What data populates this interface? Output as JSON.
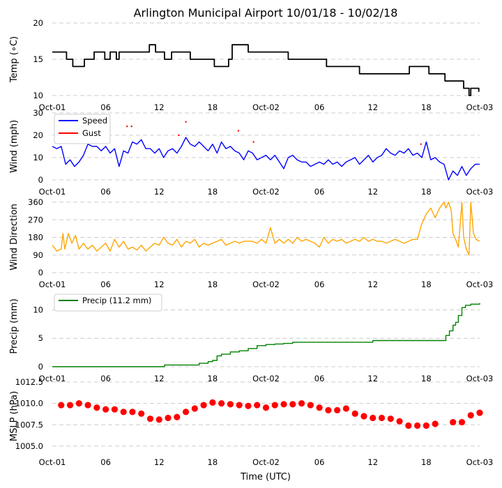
{
  "title": "Arlington Municipal Airport 10/01/18 - 10/02/18",
  "xlabel": "Time (UTC)",
  "x_ticks": [
    "Oct-01",
    "06",
    "12",
    "18",
    "Oct-02",
    "06",
    "12",
    "18",
    "Oct-03"
  ],
  "x_tick_hours": [
    0,
    6,
    12,
    18,
    24,
    30,
    36,
    42,
    48
  ],
  "colors": {
    "temp": "#000000",
    "speed": "#0000ff",
    "gust": "#ff0000",
    "direction": "#ffa500",
    "precip": "#008000",
    "pressure": "#ff0000",
    "grid": "#cccccc"
  },
  "chart_data": [
    {
      "type": "line",
      "id": "temp",
      "ylabel": "Temp (∘C)",
      "ylim": [
        10,
        20
      ],
      "y_ticks": [
        "10",
        "15",
        "20"
      ],
      "y_tick_values": [
        10,
        15,
        20
      ],
      "series": [
        {
          "name": "Temp",
          "x": [
            0,
            1.5,
            1.6,
            1.9,
            2.3,
            2.6,
            3.5,
            3.6,
            4.6,
            4.7,
            5.8,
            5.9,
            6.2,
            6.5,
            6.8,
            7.2,
            7.5,
            8.4,
            8.5,
            9.5,
            10.8,
            10.9,
            11.3,
            11.6,
            12.1,
            12.6,
            13.4,
            13.8,
            14.3,
            14.6,
            15.2,
            15.5,
            16.3,
            17.0,
            18.2,
            18.8,
            19.3,
            19.8,
            20.2,
            21.3,
            21.6,
            22.0,
            24.0,
            26.2,
            26.5,
            28.9,
            29.2,
            30.8,
            32.5,
            34.2,
            34.5,
            35.8,
            36.1,
            39.7,
            40.1,
            42.0,
            42.3,
            43.8,
            44.1,
            44.6,
            46.0,
            46.2,
            46.8,
            47.0,
            47.6,
            47.9
          ],
          "y": [
            16,
            16,
            15,
            15,
            14,
            14,
            14,
            15,
            15,
            16,
            16,
            15,
            15,
            16,
            16,
            15,
            16,
            16,
            16,
            16,
            16,
            17,
            17,
            16,
            16,
            15,
            16,
            16,
            16,
            16,
            16,
            15,
            15,
            15,
            14,
            14,
            14,
            15,
            17,
            17,
            17,
            16,
            16,
            16,
            15,
            15,
            15,
            14,
            14,
            14,
            13,
            13,
            13,
            13,
            14,
            14,
            13,
            13,
            12,
            12,
            12,
            11,
            10,
            11,
            11,
            10.5
          ]
        }
      ]
    },
    {
      "type": "line",
      "id": "wind",
      "ylabel": "Wind (mph)",
      "ylim": [
        0,
        30
      ],
      "y_ticks": [
        "0",
        "10",
        "20",
        "30"
      ],
      "y_tick_values": [
        0,
        10,
        20,
        30
      ],
      "legend": {
        "position": "top-left",
        "entries": [
          "Speed",
          "Gust"
        ]
      },
      "series": [
        {
          "name": "Speed",
          "x": [
            0,
            0.5,
            1.0,
            1.5,
            2.0,
            2.5,
            3.0,
            3.5,
            4.0,
            4.5,
            5.0,
            5.5,
            6.0,
            6.5,
            7.0,
            7.5,
            8.0,
            8.5,
            9.0,
            9.5,
            10.0,
            10.5,
            11.0,
            11.5,
            12.0,
            12.5,
            13.0,
            13.5,
            14.0,
            14.5,
            15.0,
            15.5,
            16.0,
            16.5,
            17.0,
            17.5,
            18.0,
            18.5,
            19.0,
            19.5,
            20.0,
            20.5,
            21.0,
            21.5,
            22.0,
            22.5,
            23.0,
            23.5,
            24.0,
            24.5,
            25.0,
            25.5,
            26.0,
            26.5,
            27.0,
            27.5,
            28.0,
            28.5,
            29.0,
            29.5,
            30.0,
            30.5,
            31.0,
            31.5,
            32.0,
            32.5,
            33.0,
            33.5,
            34.0,
            34.5,
            35.0,
            35.5,
            36.0,
            36.5,
            37.0,
            37.5,
            38.0,
            38.5,
            39.0,
            39.5,
            40.0,
            40.5,
            41.0,
            41.5,
            42.0,
            42.5,
            43.0,
            43.5,
            44.0,
            44.5,
            45.0,
            45.5,
            46.0,
            46.5,
            47.0,
            47.5,
            48.0
          ],
          "y": [
            15,
            14,
            15,
            7,
            9,
            6,
            8,
            11,
            16,
            15,
            15,
            13,
            15,
            12,
            14,
            6,
            13,
            12,
            17,
            16,
            18,
            14,
            14,
            12,
            14,
            10,
            13,
            14,
            12,
            15,
            19,
            16,
            15,
            17,
            15,
            13,
            16,
            12,
            17,
            14,
            15,
            13,
            12,
            9,
            13,
            12,
            9,
            10,
            11,
            9,
            11,
            8,
            5,
            10,
            11,
            9,
            8,
            8,
            6,
            7,
            8,
            7,
            9,
            7,
            8,
            6,
            8,
            9,
            10,
            7,
            9,
            11,
            8,
            10,
            11,
            14,
            12,
            11,
            13,
            12,
            14,
            11,
            12,
            10,
            17,
            9,
            10,
            8,
            7,
            0,
            4,
            2,
            6,
            2,
            5,
            7,
            7
          ]
        },
        {
          "name": "Gust",
          "x": [
            8.4,
            8.9,
            14.2,
            15.0,
            20.9,
            22.6,
            41.4
          ],
          "y": [
            24,
            24,
            20,
            26,
            22,
            17,
            16
          ]
        }
      ]
    },
    {
      "type": "line",
      "id": "direction",
      "ylabel": "Wind Direction",
      "ylim": [
        0,
        360
      ],
      "y_ticks": [
        "0",
        "90",
        "180",
        "270",
        "360"
      ],
      "y_tick_values": [
        0,
        90,
        180,
        270,
        360
      ],
      "series": [
        {
          "name": "Direction",
          "x": [
            0,
            0.5,
            1.0,
            1.2,
            1.4,
            1.8,
            2.2,
            2.6,
            3.0,
            3.5,
            4.0,
            4.5,
            5.0,
            5.5,
            6.0,
            6.5,
            7.0,
            7.5,
            8.0,
            8.5,
            9.0,
            9.5,
            10.0,
            10.5,
            11.0,
            11.5,
            12.0,
            12.5,
            13.0,
            13.5,
            14.0,
            14.5,
            15.0,
            15.5,
            16.0,
            16.5,
            17.0,
            17.5,
            18.0,
            18.5,
            19.0,
            19.5,
            20.0,
            20.5,
            21.0,
            21.5,
            22.0,
            22.5,
            23.0,
            23.5,
            24.0,
            24.5,
            25.0,
            25.5,
            26.0,
            26.5,
            27.0,
            27.5,
            28.0,
            28.5,
            29.0,
            29.5,
            30.0,
            30.5,
            31.0,
            31.5,
            32.0,
            32.5,
            33.0,
            33.5,
            34.0,
            34.5,
            35.0,
            35.5,
            36.0,
            36.5,
            37.0,
            37.5,
            38.0,
            38.5,
            39.0,
            39.5,
            40.0,
            40.5,
            41.0,
            41.5,
            42.0,
            42.5,
            43.0,
            43.5,
            44.0,
            44.2,
            44.5,
            44.8,
            45.0,
            45.3,
            45.6,
            46.0,
            46.2,
            46.5,
            46.8,
            47.0,
            47.3,
            47.6,
            48.0
          ],
          "y": [
            140,
            110,
            120,
            200,
            120,
            200,
            150,
            190,
            120,
            150,
            120,
            140,
            110,
            130,
            150,
            110,
            170,
            130,
            160,
            120,
            130,
            115,
            140,
            110,
            130,
            150,
            140,
            180,
            150,
            140,
            170,
            130,
            160,
            150,
            170,
            130,
            150,
            140,
            150,
            160,
            170,
            140,
            150,
            160,
            150,
            160,
            160,
            160,
            150,
            170,
            150,
            230,
            150,
            170,
            150,
            170,
            150,
            180,
            160,
            170,
            160,
            150,
            130,
            180,
            150,
            170,
            160,
            170,
            150,
            160,
            170,
            160,
            180,
            160,
            170,
            160,
            160,
            150,
            160,
            170,
            160,
            150,
            160,
            170,
            170,
            250,
            300,
            330,
            280,
            330,
            360,
            330,
            360,
            320,
            200,
            170,
            130,
            360,
            180,
            120,
            90,
            360,
            200,
            170,
            160
          ]
        }
      ]
    },
    {
      "type": "line",
      "id": "precip",
      "ylabel": "Precip (mm)",
      "ylim": [
        0,
        13
      ],
      "y_ticks": [
        "0",
        "5",
        "10"
      ],
      "y_tick_values": [
        0,
        5,
        10
      ],
      "legend": {
        "position": "top-left",
        "entries": [
          "Precip (11.2 mm)"
        ]
      },
      "series": [
        {
          "name": "Precip (11.2 mm)",
          "x": [
            0,
            12.5,
            12.6,
            16.0,
            16.5,
            17.5,
            18.0,
            18.5,
            19.0,
            20.0,
            21.0,
            22.0,
            23.0,
            24.0,
            25.0,
            26.0,
            27.0,
            30.0,
            35.9,
            36.0,
            43.9,
            44.2,
            44.6,
            45.0,
            45.3,
            45.6,
            46.0,
            46.4,
            47.0,
            48.0
          ],
          "y": [
            0,
            0,
            0.3,
            0.3,
            0.6,
            0.9,
            1.1,
            1.9,
            2.2,
            2.6,
            2.8,
            3.2,
            3.7,
            3.9,
            4.0,
            4.1,
            4.3,
            4.3,
            4.3,
            4.6,
            4.6,
            5.5,
            6.3,
            7.3,
            7.8,
            9.0,
            10.4,
            10.8,
            11.0,
            11.2
          ]
        }
      ]
    },
    {
      "type": "scatter",
      "id": "pressure",
      "ylabel": "MSLP (hPa)",
      "ylim": [
        1004.5,
        1012.5
      ],
      "y_ticks": [
        "1005.0",
        "1007.5",
        "1010.0",
        "1012.5"
      ],
      "y_tick_values": [
        1005.0,
        1007.5,
        1010.0,
        1012.5
      ],
      "series": [
        {
          "name": "MSLP",
          "x": [
            1,
            2,
            3,
            4,
            5,
            6,
            7,
            8,
            9,
            10,
            11,
            12,
            13,
            14,
            15,
            16,
            17,
            18,
            19,
            20,
            21,
            22,
            23,
            24,
            25,
            26,
            27,
            28,
            29,
            30,
            31,
            32,
            33,
            34,
            35,
            36,
            37,
            38,
            39,
            40,
            41,
            42,
            43,
            45,
            46,
            47,
            48
          ],
          "y": [
            1009.8,
            1009.8,
            1010.0,
            1009.8,
            1009.5,
            1009.3,
            1009.3,
            1009.0,
            1009.0,
            1008.8,
            1008.2,
            1008.1,
            1008.3,
            1008.4,
            1009.0,
            1009.4,
            1009.8,
            1010.1,
            1010.0,
            1009.9,
            1009.8,
            1009.7,
            1009.8,
            1009.5,
            1009.8,
            1009.9,
            1009.9,
            1010.0,
            1009.8,
            1009.5,
            1009.2,
            1009.2,
            1009.4,
            1008.8,
            1008.5,
            1008.3,
            1008.3,
            1008.2,
            1007.9,
            1007.4,
            1007.4,
            1007.4,
            1007.6,
            1007.8,
            1007.8,
            1008.6,
            1008.9
          ]
        }
      ]
    }
  ]
}
